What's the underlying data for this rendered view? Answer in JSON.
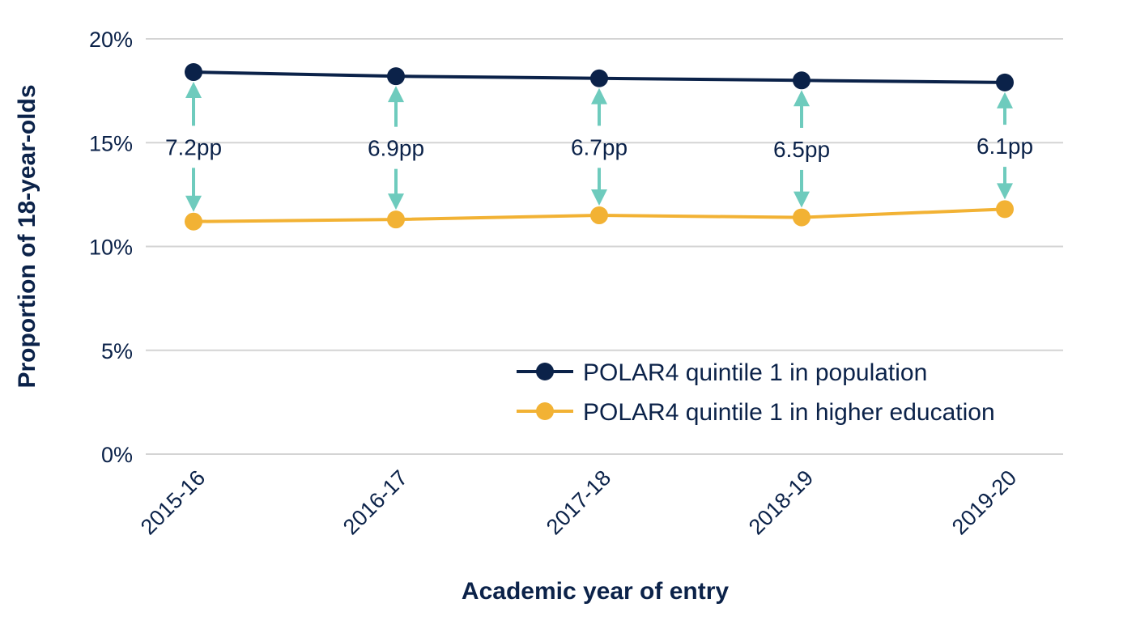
{
  "chart_data": {
    "type": "line",
    "title": "",
    "xlabel": "Academic year of entry",
    "ylabel": "Proportion of 18-year-olds",
    "categories": [
      "2015-16",
      "2016-17",
      "2017-18",
      "2018-19",
      "2019-20"
    ],
    "y_ticks": [
      "0%",
      "5%",
      "10%",
      "15%",
      "20%"
    ],
    "ylim": [
      0,
      20
    ],
    "grid": true,
    "legend_position": "bottom-right",
    "series": [
      {
        "name": "POLAR4 quintile 1 in population",
        "color": "#0b2249",
        "values": [
          18.4,
          18.2,
          18.1,
          18.0,
          17.9
        ]
      },
      {
        "name": "POLAR4 quintile 1 in higher education",
        "color": "#f2b234",
        "values": [
          11.2,
          11.3,
          11.5,
          11.4,
          11.8
        ]
      }
    ],
    "annotations": {
      "type": "gap-arrows",
      "color": "#6ecbbd",
      "labels": [
        "7.2pp",
        "6.9pp",
        "6.7pp",
        "6.5pp",
        "6.1pp"
      ]
    }
  }
}
